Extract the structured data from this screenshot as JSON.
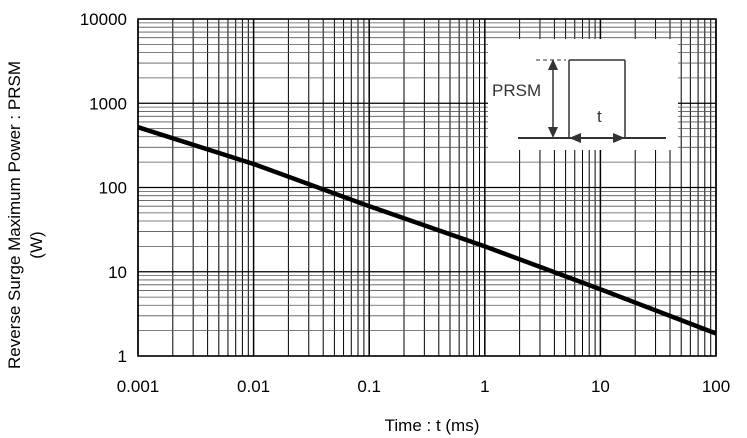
{
  "chart_data": {
    "type": "line",
    "x_scale": "log",
    "y_scale": "log",
    "xlim": [
      0.001,
      100
    ],
    "ylim": [
      1,
      10000
    ],
    "grid": true,
    "x_ticks": [
      "0.001",
      "0.01",
      "0.1",
      "1",
      "10",
      "100"
    ],
    "y_ticks": [
      "1",
      "10",
      "100",
      "1000",
      "10000"
    ],
    "xlabel": "Time : t (ms)",
    "ylabel_line1": "Reverse Surge Maximum Power : PRSM",
    "ylabel_line2": "(W)",
    "series": [
      {
        "x": [
          0.001,
          0.01,
          0.1,
          1,
          10,
          100
        ],
        "y": [
          520,
          190,
          60,
          20,
          6.2,
          1.85
        ]
      }
    ],
    "inset": {
      "amplitude_label": "PRSM",
      "duration_label": "t"
    }
  }
}
